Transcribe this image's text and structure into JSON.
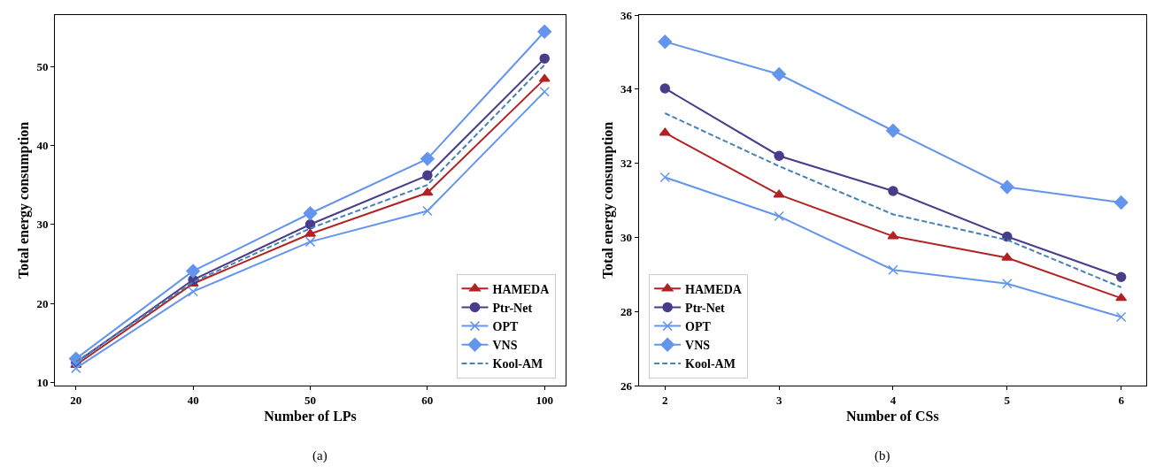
{
  "chart_data": [
    {
      "type": "line",
      "xlabel": "Number of LPs",
      "ylabel": "Total energy consumption",
      "annotations": [
        "(a)"
      ],
      "categories": [
        "20",
        "40",
        "50",
        "60",
        "100"
      ],
      "ylim": [
        9.6,
        56.5
      ],
      "yticks": [
        10,
        20,
        30,
        40,
        50
      ],
      "legend": "bottom right",
      "series": [
        {
          "name": "HAMEDA",
          "color": "#b22222",
          "marker": "triangle",
          "line_style": "solid",
          "values": [
            12.2,
            22.5,
            28.8,
            34.0,
            48.4
          ]
        },
        {
          "name": "Ptr-Net",
          "color": "#483d8b",
          "marker": "circle",
          "line_style": "solid",
          "values": [
            12.5,
            23.0,
            30.0,
            36.2,
            51.0
          ]
        },
        {
          "name": "OPT",
          "color": "#6495ed",
          "marker": "cross",
          "line_style": "solid",
          "values": [
            11.8,
            21.5,
            27.8,
            31.7,
            46.8
          ]
        },
        {
          "name": "VNS",
          "color": "#6495ed",
          "marker": "diamond",
          "line_style": "solid",
          "values": [
            13.0,
            24.1,
            31.4,
            38.3,
            54.4
          ]
        },
        {
          "name": "Kool-AM",
          "color": "#4682b4",
          "marker": "none",
          "line_style": "dashed",
          "values": [
            12.6,
            22.7,
            29.5,
            35.0,
            50.2
          ]
        }
      ]
    },
    {
      "type": "line",
      "xlabel": "Number of CSs",
      "ylabel": "Total energy consumption",
      "annotations": [
        "(b)"
      ],
      "x": [
        2,
        3,
        4,
        5,
        6
      ],
      "xlim": [
        1.77,
        6.22
      ],
      "xticks": [
        2,
        3,
        4,
        5,
        6
      ],
      "ylim": [
        26,
        36
      ],
      "yticks": [
        26,
        28,
        30,
        32,
        34,
        36
      ],
      "legend": "bottom left",
      "series": [
        {
          "name": "HAMEDA",
          "color": "#b22222",
          "marker": "triangle",
          "line_style": "solid",
          "values": [
            32.82,
            31.15,
            30.03,
            29.45,
            28.36
          ]
        },
        {
          "name": "Ptr-Net",
          "color": "#483d8b",
          "marker": "circle",
          "line_style": "solid",
          "values": [
            34.02,
            32.2,
            31.25,
            30.02,
            28.93
          ]
        },
        {
          "name": "OPT",
          "color": "#6495ed",
          "marker": "cross",
          "line_style": "solid",
          "values": [
            31.62,
            30.57,
            29.12,
            28.75,
            27.85
          ]
        },
        {
          "name": "VNS",
          "color": "#6495ed",
          "marker": "diamond",
          "line_style": "solid",
          "values": [
            35.28,
            34.4,
            32.88,
            31.36,
            30.94
          ]
        },
        {
          "name": "Kool-AM",
          "color": "#4682b4",
          "marker": "none",
          "line_style": "dashed",
          "values": [
            33.35,
            31.92,
            30.62,
            29.93,
            28.65
          ]
        }
      ]
    }
  ]
}
